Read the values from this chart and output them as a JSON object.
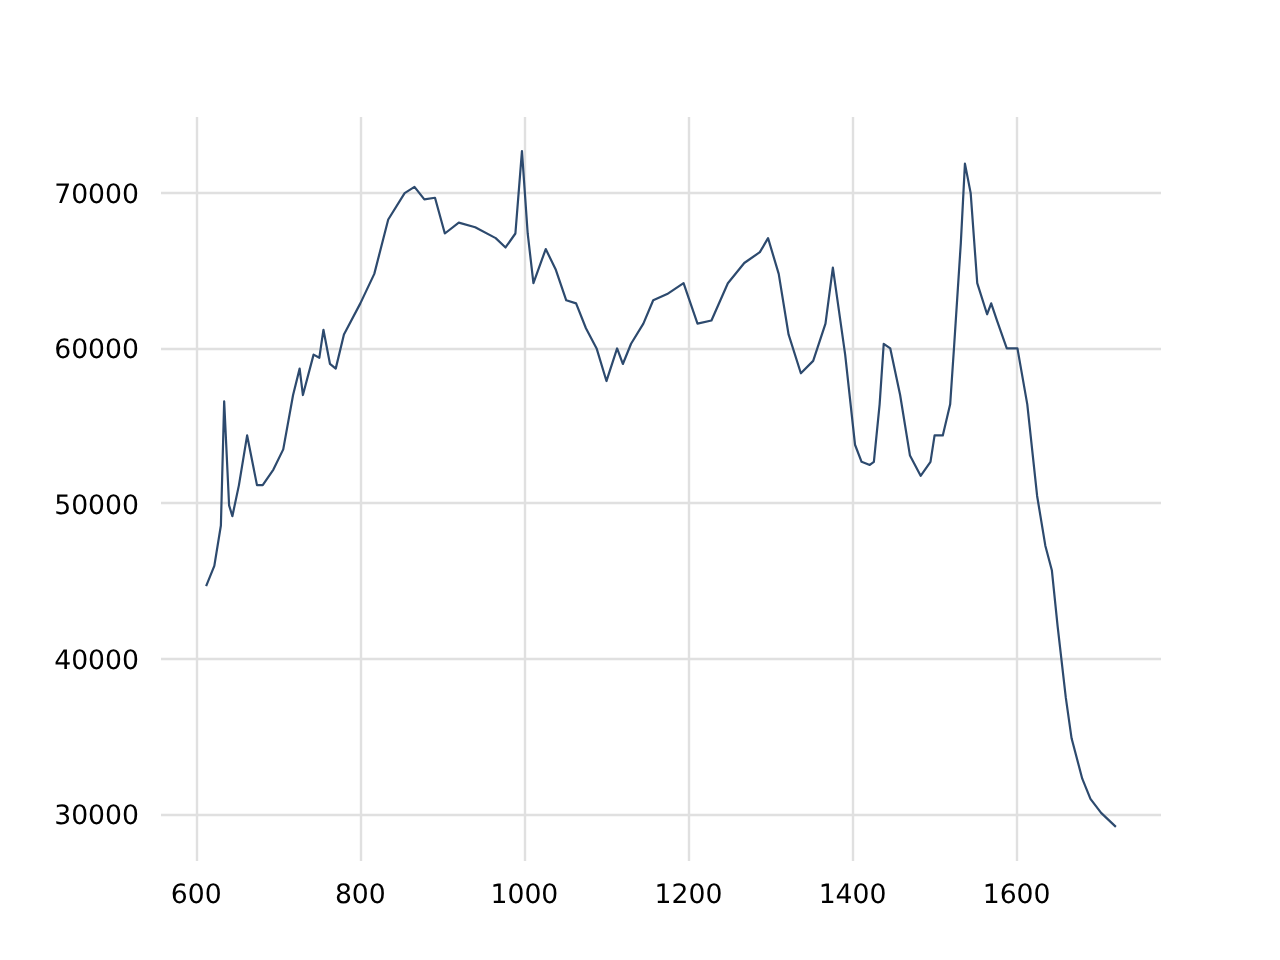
{
  "chart_data": {
    "type": "line",
    "grid": true,
    "marker": "none",
    "line_style": "solid",
    "xlim": [
      557,
      1776
    ],
    "ylim": [
      27000,
      74900
    ],
    "xticks": [
      600,
      800,
      1000,
      1200,
      1400,
      1600
    ],
    "yticks": [
      30000,
      40000,
      50000,
      60000,
      70000
    ],
    "series": [
      {
        "color": "#2d4a6e",
        "x": [
          612,
          622,
          630,
          634,
          640,
          644,
          652,
          662,
          674,
          681,
          694,
          706,
          718,
          726,
          730,
          743,
          750,
          755,
          763,
          770,
          780,
          800,
          817,
          834,
          854,
          866,
          878,
          891,
          903,
          920,
          940,
          965,
          977,
          989,
          997,
          1004,
          1011,
          1026,
          1038,
          1051,
          1063,
          1075,
          1088,
          1100,
          1113,
          1120,
          1130,
          1145,
          1157,
          1174,
          1194,
          1211,
          1228,
          1248,
          1268,
          1287,
          1297,
          1310,
          1322,
          1337,
          1352,
          1367,
          1376,
          1391,
          1403,
          1411,
          1421,
          1426,
          1433,
          1438,
          1446,
          1458,
          1470,
          1483,
          1495,
          1500,
          1510,
          1519,
          1524,
          1532,
          1537,
          1544,
          1552,
          1564,
          1569,
          1576,
          1588,
          1601,
          1613,
          1625,
          1635,
          1643,
          1650,
          1660,
          1667,
          1680,
          1690,
          1703,
          1721
        ],
        "values": [
          44700,
          46000,
          48600,
          56600,
          49900,
          49200,
          51200,
          54400,
          51200,
          51200,
          52200,
          53500,
          57000,
          58700,
          57000,
          59600,
          59400,
          61200,
          59000,
          58700,
          60900,
          62900,
          64800,
          68300,
          70000,
          70400,
          69600,
          69700,
          67400,
          68100,
          67800,
          67100,
          66500,
          67400,
          72700,
          67400,
          64200,
          66400,
          65100,
          63100,
          62900,
          61300,
          60000,
          57900,
          60000,
          59000,
          60300,
          61600,
          63100,
          63500,
          64200,
          61600,
          61800,
          64200,
          65500,
          66200,
          67100,
          64800,
          60900,
          58400,
          59200,
          61600,
          65200,
          59600,
          53800,
          52700,
          52500,
          52700,
          56400,
          60300,
          60000,
          57000,
          53100,
          51800,
          52700,
          54400,
          54400,
          56400,
          60300,
          66800,
          71900,
          70000,
          64200,
          62200,
          62900,
          61800,
          60000,
          60000,
          56400,
          50500,
          47300,
          45700,
          42100,
          37500,
          34900,
          32300,
          31000,
          30100,
          29200
        ]
      }
    ]
  }
}
